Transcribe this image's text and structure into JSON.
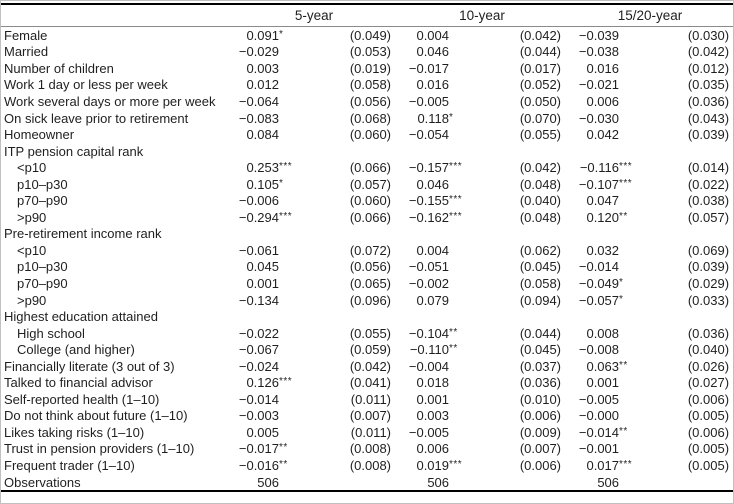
{
  "table": {
    "col_groups": [
      "5-year",
      "10-year",
      "15/20-year"
    ],
    "rows": [
      {
        "label": "Female",
        "indent": false,
        "section": false,
        "cells": [
          "0.091*",
          "(0.049)",
          "0.004",
          "(0.042)",
          "−0.039",
          "(0.030)"
        ]
      },
      {
        "label": "Married",
        "indent": false,
        "section": false,
        "cells": [
          "−0.029",
          "(0.053)",
          "0.046",
          "(0.044)",
          "−0.038",
          "(0.042)"
        ]
      },
      {
        "label": "Number of children",
        "indent": false,
        "section": false,
        "cells": [
          "0.003",
          "(0.019)",
          "−0.017",
          "(0.017)",
          "0.016",
          "(0.012)"
        ]
      },
      {
        "label": "Work 1 day or less per week",
        "indent": false,
        "section": false,
        "cells": [
          "0.012",
          "(0.058)",
          "0.016",
          "(0.052)",
          "−0.021",
          "(0.035)"
        ]
      },
      {
        "label": "Work several days or more per week",
        "indent": false,
        "section": false,
        "cells": [
          "−0.064",
          "(0.056)",
          "−0.005",
          "(0.050)",
          "0.006",
          "(0.036)"
        ]
      },
      {
        "label": "On sick leave prior to retirement",
        "indent": false,
        "section": false,
        "cells": [
          "−0.083",
          "(0.068)",
          "0.118*",
          "(0.070)",
          "−0.030",
          "(0.043)"
        ]
      },
      {
        "label": "Homeowner",
        "indent": false,
        "section": false,
        "cells": [
          "0.084",
          "(0.060)",
          "−0.054",
          "(0.055)",
          "0.042",
          "(0.039)"
        ]
      },
      {
        "label": "ITP pension capital rank",
        "indent": false,
        "section": true,
        "cells": []
      },
      {
        "label": "<p10",
        "indent": true,
        "section": false,
        "cells": [
          "0.253***",
          "(0.066)",
          "−0.157***",
          "(0.042)",
          "−0.116***",
          "(0.014)"
        ]
      },
      {
        "label": "p10–p30",
        "indent": true,
        "section": false,
        "cells": [
          "0.105*",
          "(0.057)",
          "0.046",
          "(0.048)",
          "−0.107***",
          "(0.022)"
        ]
      },
      {
        "label": "p70–p90",
        "indent": true,
        "section": false,
        "cells": [
          "−0.006",
          "(0.060)",
          "−0.155***",
          "(0.040)",
          "0.047",
          "(0.038)"
        ]
      },
      {
        "label": ">p90",
        "indent": true,
        "section": false,
        "cells": [
          "−0.294***",
          "(0.066)",
          "−0.162***",
          "(0.048)",
          "0.120**",
          "(0.057)"
        ]
      },
      {
        "label": "Pre-retirement income rank",
        "indent": false,
        "section": true,
        "cells": []
      },
      {
        "label": "<p10",
        "indent": true,
        "section": false,
        "cells": [
          "−0.061",
          "(0.072)",
          "0.004",
          "(0.062)",
          "0.032",
          "(0.069)"
        ]
      },
      {
        "label": "p10–p30",
        "indent": true,
        "section": false,
        "cells": [
          "0.045",
          "(0.056)",
          "−0.051",
          "(0.045)",
          "−0.014",
          "(0.039)"
        ]
      },
      {
        "label": "p70–p90",
        "indent": true,
        "section": false,
        "cells": [
          "0.001",
          "(0.065)",
          "−0.002",
          "(0.058)",
          "−0.049*",
          "(0.029)"
        ]
      },
      {
        "label": ">p90",
        "indent": true,
        "section": false,
        "cells": [
          "−0.134",
          "(0.096)",
          "0.079",
          "(0.094)",
          "−0.057*",
          "(0.033)"
        ]
      },
      {
        "label": "Highest education attained",
        "indent": false,
        "section": true,
        "cells": []
      },
      {
        "label": "High school",
        "indent": true,
        "section": false,
        "cells": [
          "−0.022",
          "(0.055)",
          "−0.104**",
          "(0.044)",
          "0.008",
          "(0.036)"
        ]
      },
      {
        "label": "College (and higher)",
        "indent": true,
        "section": false,
        "cells": [
          "−0.067",
          "(0.059)",
          "−0.110**",
          "(0.045)",
          "−0.008",
          "(0.040)"
        ]
      },
      {
        "label": "Financially literate (3 out of 3)",
        "indent": false,
        "section": false,
        "cells": [
          "−0.024",
          "(0.042)",
          "−0.004",
          "(0.037)",
          "0.063**",
          "(0.026)"
        ]
      },
      {
        "label": "Talked to financial advisor",
        "indent": false,
        "section": false,
        "cells": [
          "0.126***",
          "(0.041)",
          "0.018",
          "(0.036)",
          "0.001",
          "(0.027)"
        ]
      },
      {
        "label": "Self-reported health (1–10)",
        "indent": false,
        "section": false,
        "cells": [
          "−0.014",
          "(0.011)",
          "0.001",
          "(0.010)",
          "−0.005",
          "(0.006)"
        ]
      },
      {
        "label": "Do not think about future (1–10)",
        "indent": false,
        "section": false,
        "cells": [
          "−0.003",
          "(0.007)",
          "0.003",
          "(0.006)",
          "−0.000",
          "(0.005)"
        ]
      },
      {
        "label": "Likes taking risks (1–10)",
        "indent": false,
        "section": false,
        "cells": [
          "0.005",
          "(0.011)",
          "−0.005",
          "(0.009)",
          "−0.014**",
          "(0.006)"
        ]
      },
      {
        "label": "Trust in pension providers (1–10)",
        "indent": false,
        "section": false,
        "cells": [
          "−0.017**",
          "(0.008)",
          "0.006",
          "(0.007)",
          "−0.001",
          "(0.005)"
        ]
      },
      {
        "label": "Frequent trader (1–10)",
        "indent": false,
        "section": false,
        "cells": [
          "−0.016**",
          "(0.008)",
          "0.019***",
          "(0.006)",
          "0.017***",
          "(0.005)"
        ]
      },
      {
        "label": "Observations",
        "indent": false,
        "section": false,
        "cells": [
          "506",
          "",
          "506",
          "",
          "506",
          ""
        ]
      }
    ]
  }
}
